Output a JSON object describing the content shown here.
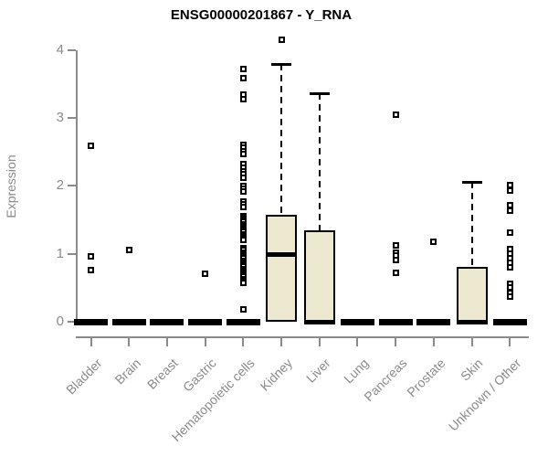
{
  "title": "ENSG00000201867 - Y_RNA",
  "y_axis": {
    "label": "Expression"
  },
  "chart_data": {
    "type": "boxplot",
    "title": "ENSG00000201867 - Y_RNA",
    "xlabel": "",
    "ylabel": "Expression",
    "ylim": [
      0,
      4.3
    ],
    "yticks": [
      0,
      1,
      2,
      3,
      4
    ],
    "grid": "off",
    "legend": "none",
    "box_fill_color": "#EDE8D0",
    "box_border_color": "#000000",
    "axis_color": "#8a8a8a",
    "outlier_marker": "open-square",
    "categories": [
      "Bladder",
      "Brain",
      "Breast",
      "Gastric",
      "Hematopoietic cells",
      "Kidney",
      "Liver",
      "Lung",
      "Pancreas",
      "Prostate",
      "Skin",
      "Unknown / Other"
    ],
    "series": [
      {
        "name": "Bladder",
        "q1": 0,
        "median": 0,
        "q3": 0,
        "whisker_low": 0,
        "whisker_high": 0,
        "outliers": [
          2.59,
          0.96,
          0.76
        ]
      },
      {
        "name": "Brain",
        "q1": 0,
        "median": 0,
        "q3": 0,
        "whisker_low": 0,
        "whisker_high": 0,
        "outliers": [
          1.05
        ]
      },
      {
        "name": "Breast",
        "q1": 0,
        "median": 0,
        "q3": 0,
        "whisker_low": 0,
        "whisker_high": 0,
        "outliers": []
      },
      {
        "name": "Gastric",
        "q1": 0,
        "median": 0,
        "q3": 0,
        "whisker_low": 0,
        "whisker_high": 0,
        "outliers": [
          0.71
        ]
      },
      {
        "name": "Hematopoietic cells",
        "q1": 0,
        "median": 0,
        "q3": 0,
        "whisker_low": 0,
        "whisker_high": 0,
        "outliers": [
          3.72,
          3.59,
          3.35,
          3.28,
          2.61,
          2.56,
          2.51,
          2.47,
          2.32,
          2.27,
          2.22,
          2.17,
          2.12,
          2.0,
          1.96,
          1.92,
          1.77,
          1.73,
          1.69,
          1.56,
          1.53,
          1.5,
          1.47,
          1.44,
          1.41,
          1.38,
          1.35,
          1.32,
          1.29,
          1.26,
          1.23,
          1.2,
          1.08,
          1.05,
          1.02,
          0.99,
          0.96,
          0.93,
          0.9,
          0.87,
          0.84,
          0.81,
          0.78,
          0.75,
          0.72,
          0.69,
          0.66,
          0.63,
          0.6,
          0.57,
          0.18
        ]
      },
      {
        "name": "Kidney",
        "q1": 0,
        "median": 1.0,
        "q3": 1.58,
        "whisker_low": 0,
        "whisker_high": 3.79,
        "outliers": [
          4.15
        ]
      },
      {
        "name": "Liver",
        "q1": 0,
        "median": 0,
        "q3": 1.35,
        "whisker_low": 0,
        "whisker_high": 3.36,
        "outliers": []
      },
      {
        "name": "Lung",
        "q1": 0,
        "median": 0,
        "q3": 0,
        "whisker_low": 0,
        "whisker_high": 0,
        "outliers": []
      },
      {
        "name": "Pancreas",
        "q1": 0,
        "median": 0,
        "q3": 0,
        "whisker_low": 0,
        "whisker_high": 0,
        "outliers": [
          3.05,
          1.12,
          1.02,
          0.97,
          0.91,
          0.72
        ]
      },
      {
        "name": "Prostate",
        "q1": 0,
        "median": 0,
        "q3": 0,
        "whisker_low": 0,
        "whisker_high": 0,
        "outliers": [
          1.18
        ]
      },
      {
        "name": "Skin",
        "q1": 0,
        "median": 0,
        "q3": 0.81,
        "whisker_low": 0,
        "whisker_high": 2.06,
        "outliers": []
      },
      {
        "name": "Unknown / Other",
        "q1": 0,
        "median": 0,
        "q3": 0,
        "whisker_low": 0,
        "whisker_high": 0,
        "outliers": [
          2.01,
          1.93,
          1.71,
          1.63,
          1.31,
          1.07,
          1.0,
          0.94,
          0.87,
          0.8,
          0.56,
          0.5,
          0.43,
          0.37
        ]
      }
    ]
  }
}
